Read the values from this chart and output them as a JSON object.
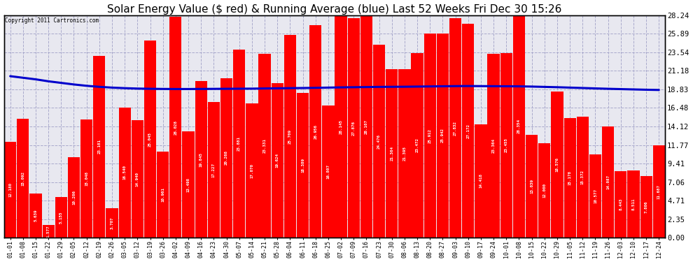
{
  "title": "Solar Energy Value ($ red) & Running Average (blue) Last 52 Weeks Fri Dec 30 15:26",
  "copyright": "Copyright 2011 Cartronics.com",
  "bar_color": "#FF0000",
  "line_color": "#0000CC",
  "background_color": "#FFFFFF",
  "plot_bg_color": "#E8E8F0",
  "grid_color": "#AAAACC",
  "title_fontsize": 11,
  "ylabel_right": [
    "28.24",
    "25.89",
    "23.54",
    "21.18",
    "18.83",
    "16.48",
    "14.12",
    "11.77",
    "9.41",
    "7.06",
    "4.71",
    "2.35",
    "0.00"
  ],
  "ytick_values": [
    28.24,
    25.89,
    23.54,
    21.18,
    18.83,
    16.48,
    14.12,
    11.77,
    9.41,
    7.06,
    4.71,
    2.35,
    0.0
  ],
  "categories": [
    "01-01",
    "01-08",
    "01-15",
    "01-22",
    "01-29",
    "02-05",
    "02-12",
    "02-19",
    "02-26",
    "03-05",
    "03-12",
    "03-19",
    "03-26",
    "04-02",
    "04-09",
    "04-16",
    "04-23",
    "04-30",
    "05-07",
    "05-14",
    "05-21",
    "05-28",
    "06-04",
    "06-11",
    "06-18",
    "06-25",
    "07-02",
    "07-09",
    "07-16",
    "07-23",
    "07-30",
    "08-06",
    "08-13",
    "08-20",
    "08-27",
    "09-03",
    "09-10",
    "09-17",
    "09-24",
    "10-01",
    "10-08",
    "10-15",
    "10-22",
    "10-29",
    "11-05",
    "11-12",
    "11-19",
    "11-26",
    "12-03",
    "12-10",
    "12-17",
    "12-24"
  ],
  "values": [
    12.18,
    15.092,
    5.639,
    1.577,
    5.155,
    10.206,
    15.048,
    23.101,
    3.707,
    16.54,
    14.94,
    25.045,
    10.961,
    28.028,
    13.498,
    19.845,
    17.227,
    20.268,
    23.881,
    17.07,
    23.331,
    19.624,
    25.709,
    18.389,
    26.956,
    16.807,
    28.145,
    27.876,
    28.107,
    24.476,
    21.364,
    21.395,
    23.472,
    25.912,
    25.942,
    27.832,
    27.172,
    14.418,
    23.364,
    23.455,
    28.354,
    13.039,
    12.0,
    18.576,
    15.178,
    15.372,
    10.577,
    14.087,
    8.443,
    8.511,
    7.806,
    11.687
  ],
  "running_avg": [
    20.5,
    20.3,
    20.1,
    19.85,
    19.65,
    19.45,
    19.28,
    19.15,
    19.05,
    18.98,
    18.93,
    18.9,
    18.88,
    18.87,
    18.87,
    18.88,
    18.89,
    18.9,
    18.91,
    18.92,
    18.94,
    18.96,
    18.98,
    19.0,
    19.02,
    19.05,
    19.08,
    19.1,
    19.12,
    19.14,
    19.15,
    19.16,
    19.18,
    19.2,
    19.22,
    19.24,
    19.25,
    19.24,
    19.23,
    19.22,
    19.21,
    19.18,
    19.14,
    19.1,
    19.05,
    19.0,
    18.95,
    18.9,
    18.86,
    18.82,
    18.78,
    18.75
  ]
}
